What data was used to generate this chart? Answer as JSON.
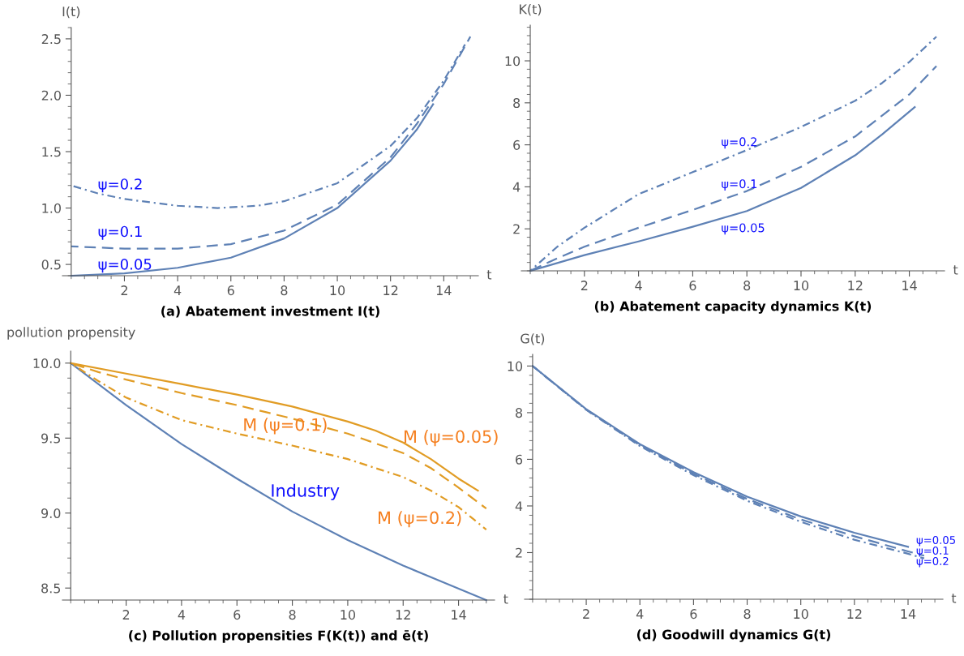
{
  "chart_data": [
    {
      "type": "line",
      "title": "(a) Abatement investment I(t)",
      "xlabel": "t",
      "ylabel": "I(t)",
      "xlim": [
        -0.33,
        15.3
      ],
      "ylim": [
        0.4,
        2.6
      ],
      "xticks": [
        2,
        4,
        6,
        8,
        10,
        12,
        14
      ],
      "yticks": [
        {
          "value": 0.5,
          "label": "0.5"
        },
        {
          "value": 1,
          "label": "1.0"
        },
        {
          "value": 1.5,
          "label": "1.5"
        },
        {
          "value": 2,
          "label": "2.0"
        },
        {
          "value": 2.5,
          "label": "2.5"
        }
      ],
      "series": [
        {
          "name": "ψ=0.05",
          "color": "#5e81b5",
          "line_style": "solid",
          "x": [
            0,
            2,
            4,
            6,
            8,
            10,
            12,
            13,
            13.6
          ],
          "values": [
            0.4,
            0.42,
            0.47,
            0.56,
            0.73,
            1.0,
            1.42,
            1.7,
            1.92
          ]
        },
        {
          "name": "ψ=0.1",
          "color": "#5e81b5",
          "line_style": "dashed",
          "x": [
            0,
            1,
            2,
            4,
            6,
            8,
            10,
            12,
            13,
            14,
            15
          ],
          "values": [
            0.66,
            0.65,
            0.64,
            0.64,
            0.68,
            0.8,
            1.03,
            1.45,
            1.75,
            2.1,
            2.52
          ]
        },
        {
          "name": "ψ=0.2",
          "color": "#5e81b5",
          "line_style": "dashdot",
          "x": [
            0,
            1,
            2,
            4,
            5.5,
            7,
            8,
            10,
            12,
            13,
            14,
            14.8
          ],
          "values": [
            1.2,
            1.13,
            1.08,
            1.02,
            1.0,
            1.02,
            1.06,
            1.22,
            1.55,
            1.8,
            2.13,
            2.45
          ]
        }
      ]
    },
    {
      "type": "line",
      "title": "(b) Abatement capacity dynamics K(t)",
      "xlabel": "t",
      "ylabel": "K(t)",
      "xlim": [
        -0.33,
        15.3
      ],
      "ylim": [
        0,
        11.7
      ],
      "xticks": [
        2,
        4,
        6,
        8,
        10,
        12,
        14
      ],
      "yticks": [
        2,
        4,
        6,
        8,
        10
      ],
      "series": [
        {
          "name": "ψ=0.05",
          "color": "#5e81b5",
          "line_style": "solid",
          "x": [
            0,
            2,
            4,
            6,
            8,
            10,
            12,
            13,
            14.2
          ],
          "values": [
            0,
            0.75,
            1.4,
            2.1,
            2.85,
            3.95,
            5.5,
            6.5,
            7.8
          ]
        },
        {
          "name": "ψ=0.1",
          "color": "#5e81b5",
          "line_style": "dashed",
          "x": [
            0,
            1,
            2,
            4,
            6,
            8,
            10,
            12,
            13,
            14,
            15
          ],
          "values": [
            0,
            0.6,
            1.15,
            2.05,
            2.9,
            3.8,
            4.95,
            6.4,
            7.4,
            8.4,
            9.75
          ]
        },
        {
          "name": "ψ=0.2",
          "color": "#5e81b5",
          "line_style": "dashdot",
          "x": [
            0,
            1,
            2,
            4,
            6,
            8,
            10,
            12,
            13,
            14,
            15
          ],
          "values": [
            0,
            1.15,
            2.05,
            3.65,
            4.7,
            5.75,
            6.85,
            8.1,
            8.95,
            9.95,
            11.15
          ]
        }
      ]
    },
    {
      "type": "line",
      "title": "(c) Pollution propensities F(K(t)) and ē(t)",
      "xlabel": "t",
      "ylabel": "pollution propensity",
      "xlim": [
        -0.3,
        15.3
      ],
      "ylim": [
        8.42,
        10.08
      ],
      "xticks": [
        2,
        4,
        6,
        8,
        10,
        12,
        14
      ],
      "yticks": [
        {
          "value": 8.5,
          "label": "8.5"
        },
        {
          "value": 9,
          "label": "9.0"
        },
        {
          "value": 9.5,
          "label": "9.5"
        },
        {
          "value": 10,
          "label": "10.0"
        }
      ],
      "series": [
        {
          "name": "Industry",
          "color": "#5e81b5",
          "line_style": "solid",
          "x": [
            0,
            2,
            4,
            6,
            8,
            10,
            12,
            13.3,
            15
          ],
          "values": [
            10.0,
            9.72,
            9.46,
            9.23,
            9.01,
            8.82,
            8.65,
            8.55,
            8.42
          ]
        },
        {
          "name": "M (ψ=0.05)",
          "color": "#e19c24",
          "line_style": "solid",
          "x": [
            0,
            2,
            4,
            6,
            8,
            10,
            11,
            12,
            13,
            14,
            14.7
          ],
          "values": [
            10.0,
            9.93,
            9.86,
            9.79,
            9.71,
            9.61,
            9.55,
            9.47,
            9.36,
            9.23,
            9.15
          ]
        },
        {
          "name": "M (ψ=0.1)",
          "color": "#e19c24",
          "line_style": "dashed",
          "x": [
            0,
            1,
            2,
            4,
            6,
            8,
            10,
            12,
            13,
            14,
            15
          ],
          "values": [
            10.0,
            9.94,
            9.89,
            9.8,
            9.72,
            9.63,
            9.53,
            9.4,
            9.3,
            9.17,
            9.03
          ]
        },
        {
          "name": "M (ψ=0.2)",
          "color": "#e19c24",
          "line_style": "dashdot",
          "x": [
            0,
            1,
            2,
            4,
            6,
            8,
            10,
            12,
            13,
            14,
            15
          ],
          "values": [
            10.0,
            9.88,
            9.77,
            9.62,
            9.53,
            9.45,
            9.36,
            9.24,
            9.15,
            9.04,
            8.89
          ]
        }
      ]
    },
    {
      "type": "line",
      "title": "(d) Goodwill dynamics G(t)",
      "xlabel": "t",
      "ylabel": "G(t)",
      "xlim": [
        -0.3,
        15.3
      ],
      "ylim": [
        0,
        10.5
      ],
      "xticks": [
        2,
        4,
        6,
        8,
        10,
        12,
        14
      ],
      "yticks": [
        2,
        4,
        6,
        8,
        10
      ],
      "series": [
        {
          "name": "ψ=0.05",
          "color": "#5e81b5",
          "line_style": "solid",
          "x": [
            0,
            2,
            4,
            6,
            8,
            10,
            12,
            14
          ],
          "values": [
            10,
            8.15,
            6.65,
            5.45,
            4.4,
            3.55,
            2.85,
            2.25
          ]
        },
        {
          "name": "ψ=0.1",
          "color": "#5e81b5",
          "line_style": "dashed",
          "x": [
            0,
            2,
            4,
            6,
            8,
            10,
            12,
            14,
            14.6
          ],
          "values": [
            10,
            8.13,
            6.6,
            5.38,
            4.3,
            3.42,
            2.7,
            2.05,
            1.87
          ]
        },
        {
          "name": "ψ=0.2",
          "color": "#5e81b5",
          "line_style": "dashdot",
          "x": [
            0,
            2,
            4,
            6,
            8,
            10,
            12,
            14,
            14.6
          ],
          "values": [
            10,
            8.12,
            6.57,
            5.32,
            4.22,
            3.32,
            2.55,
            1.95,
            1.75
          ]
        }
      ]
    }
  ]
}
